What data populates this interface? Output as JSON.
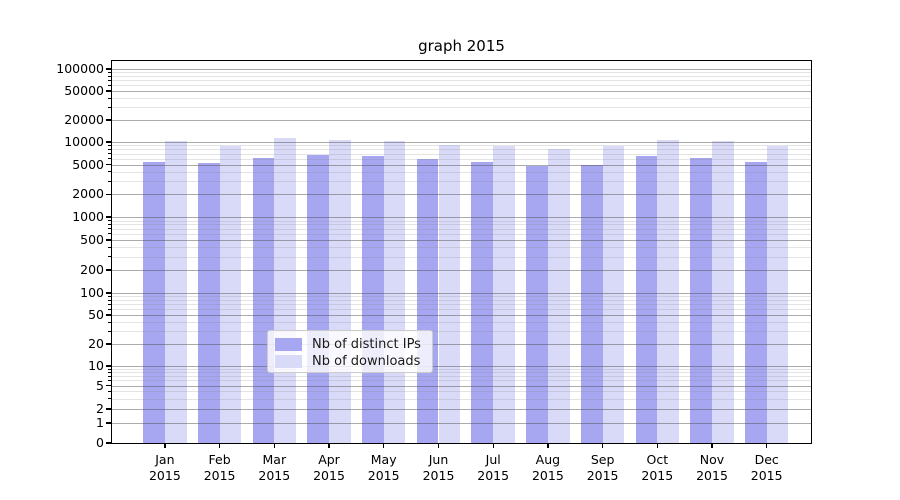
{
  "title": "graph 2015",
  "colors": {
    "bar_distinct_ips": "#a6a6f1",
    "bar_downloads": "#d9d9f8",
    "grid_major": "#ababab",
    "grid_minor": "#e3e3e3",
    "axis": "#000000",
    "background": "#ffffff"
  },
  "chart_data": {
    "type": "bar",
    "title": "graph 2015",
    "xlabel": "",
    "ylabel": "",
    "yscale": "symlog",
    "ylim": [
      0,
      100000
    ],
    "grid": true,
    "legend_position": "lower center",
    "year": "2015",
    "categories": [
      "Jan",
      "Feb",
      "Mar",
      "Apr",
      "May",
      "Jun",
      "Jul",
      "Aug",
      "Sep",
      "Oct",
      "Nov",
      "Dec"
    ],
    "y_ticks": [
      100000,
      50000,
      20000,
      10000,
      5000,
      2000,
      1000,
      500,
      200,
      100,
      50,
      20,
      10,
      5,
      2,
      1,
      0
    ],
    "y_minor_ticks": [
      3,
      4,
      6,
      7,
      8,
      9,
      30,
      40,
      60,
      70,
      80,
      90,
      300,
      400,
      600,
      700,
      800,
      900,
      3000,
      4000,
      6000,
      7000,
      8000,
      9000,
      30000,
      40000,
      60000,
      70000,
      80000,
      90000
    ],
    "series": [
      {
        "name": "Nb of distinct IPs",
        "color": "#a6a6f1",
        "values": [
          5400,
          5200,
          6200,
          6700,
          6500,
          5900,
          5400,
          4800,
          5000,
          6600,
          6200,
          5500
        ]
      },
      {
        "name": "Nb of downloads",
        "color": "#d9d9f8",
        "values": [
          10500,
          8900,
          11200,
          10800,
          10500,
          9100,
          8800,
          8200,
          8900,
          10800,
          10300,
          8800
        ]
      }
    ]
  }
}
